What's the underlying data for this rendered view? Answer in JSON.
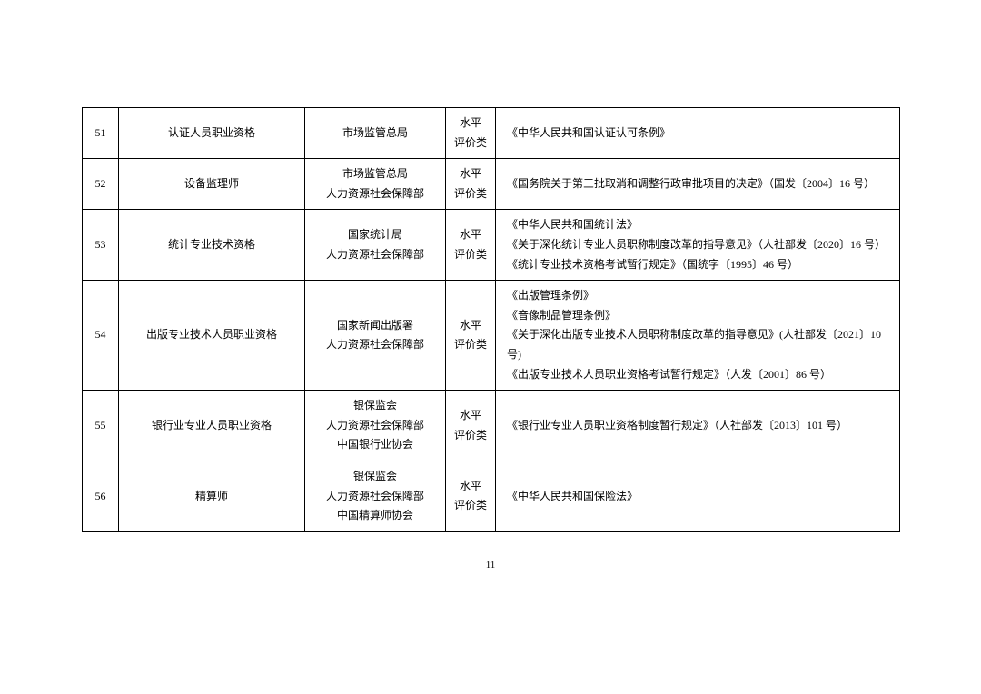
{
  "table": {
    "rows": [
      {
        "num": "51",
        "name": "认证人员职业资格",
        "dept": "市场监管总局",
        "type": "水平\n评价类",
        "basis": "《中华人民共和国认证认可条例》"
      },
      {
        "num": "52",
        "name": "设备监理师",
        "dept": "市场监管总局\n人力资源社会保障部",
        "type": "水平\n评价类",
        "basis": "《国务院关于第三批取消和调整行政审批项目的决定》（国发〔2004〕16 号）"
      },
      {
        "num": "53",
        "name": "统计专业技术资格",
        "dept": "国家统计局\n人力资源社会保障部",
        "type": "水平\n评价类",
        "basis": "《中华人民共和国统计法》\n《关于深化统计专业人员职称制度改革的指导意见》（人社部发〔2020〕16 号）\n《统计专业技术资格考试暂行规定》（国统字〔1995〕46 号）"
      },
      {
        "num": "54",
        "name": "出版专业技术人员职业资格",
        "dept": "国家新闻出版署\n人力资源社会保障部",
        "type": "水平\n评价类",
        "basis": "《出版管理条例》\n《音像制品管理条例》\n《关于深化出版专业技术人员职称制度改革的指导意见》(人社部发〔2021〕10 号)\n《出版专业技术人员职业资格考试暂行规定》（人发〔2001〕86 号）"
      },
      {
        "num": "55",
        "name": "银行业专业人员职业资格",
        "dept": "银保监会\n人力资源社会保障部\n中国银行业协会",
        "type": "水平\n评价类",
        "basis": "《银行业专业人员职业资格制度暂行规定》（人社部发〔2013〕101 号）"
      },
      {
        "num": "56",
        "name": "精算师",
        "dept": "银保监会\n人力资源社会保障部\n中国精算师协会",
        "type": "水平\n评价类",
        "basis": "《中华人民共和国保险法》"
      }
    ]
  },
  "pageNumber": "11"
}
